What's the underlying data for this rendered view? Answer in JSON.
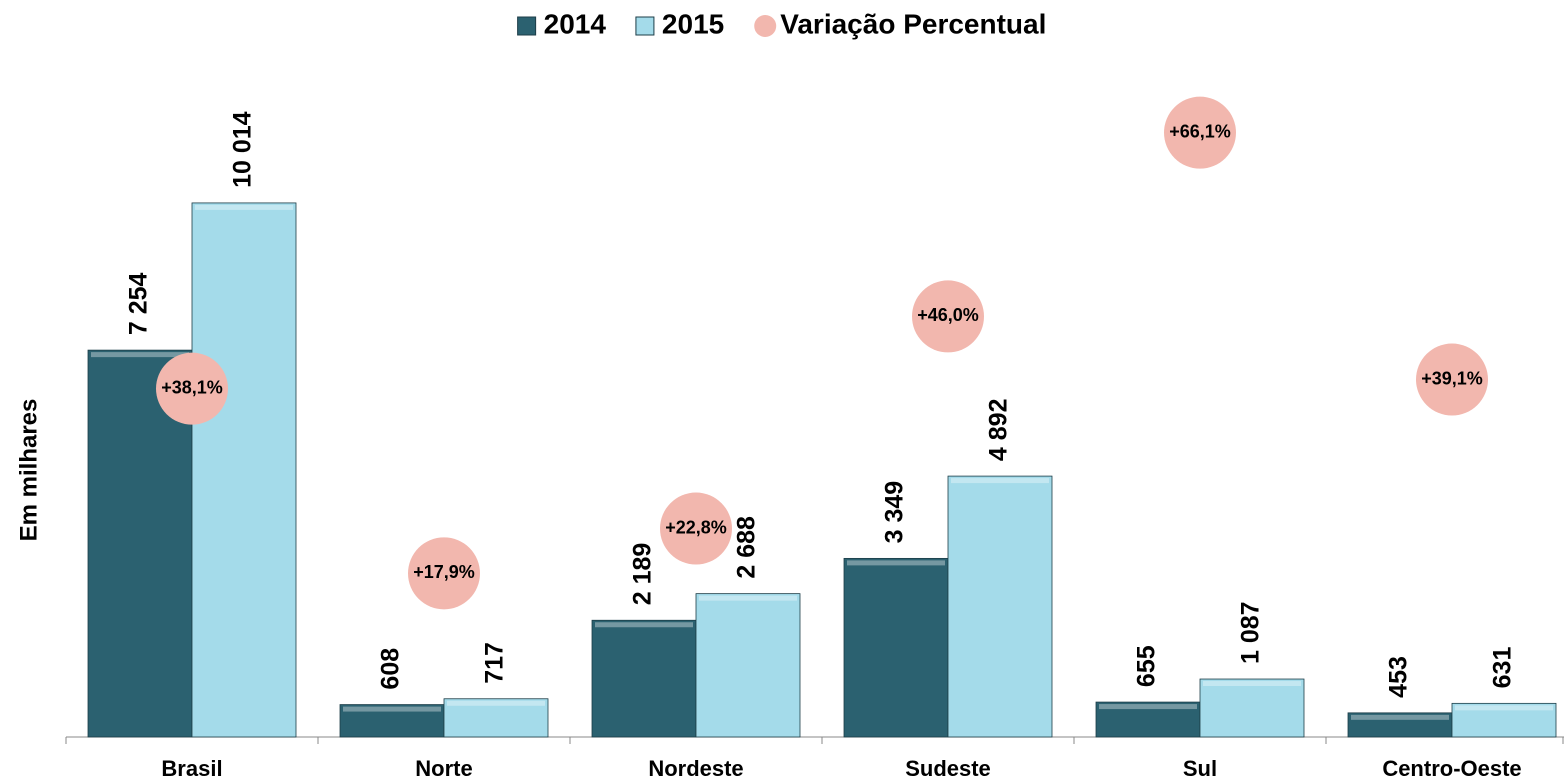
{
  "chart_data": {
    "type": "bar",
    "categories": [
      "Brasil",
      "Norte",
      "Nordeste",
      "Sudeste",
      "Sul",
      "Centro-Oeste"
    ],
    "y_label": "Em milhares",
    "series": [
      {
        "name": "2014",
        "color": "#2b6170",
        "values": [
          7254,
          608,
          2189,
          3349,
          655,
          453
        ],
        "value_labels": [
          "7 254",
          "608",
          "2 189",
          "3 349",
          "655",
          "453"
        ]
      },
      {
        "name": "2015",
        "color": "#a4dbea",
        "values": [
          10014,
          717,
          2688,
          4892,
          1087,
          631
        ],
        "value_labels": [
          "10 014",
          "717",
          "2 688",
          "4 892",
          "1 087",
          "631"
        ]
      },
      {
        "name": "Variação Percentual",
        "color": "#f2b7ae",
        "type": "scatter",
        "axis": "y2",
        "values": [
          38.1,
          17.9,
          22.8,
          46.0,
          66.1,
          39.1
        ],
        "value_labels": [
          "+38,1%",
          "+17,9%",
          "+22,8%",
          "+46,0%",
          "+66,1%",
          "+39,1%"
        ]
      }
    ],
    "ylim": [
      0,
      12000
    ],
    "y2lim": [
      0,
      70
    ],
    "legend": "top"
  }
}
